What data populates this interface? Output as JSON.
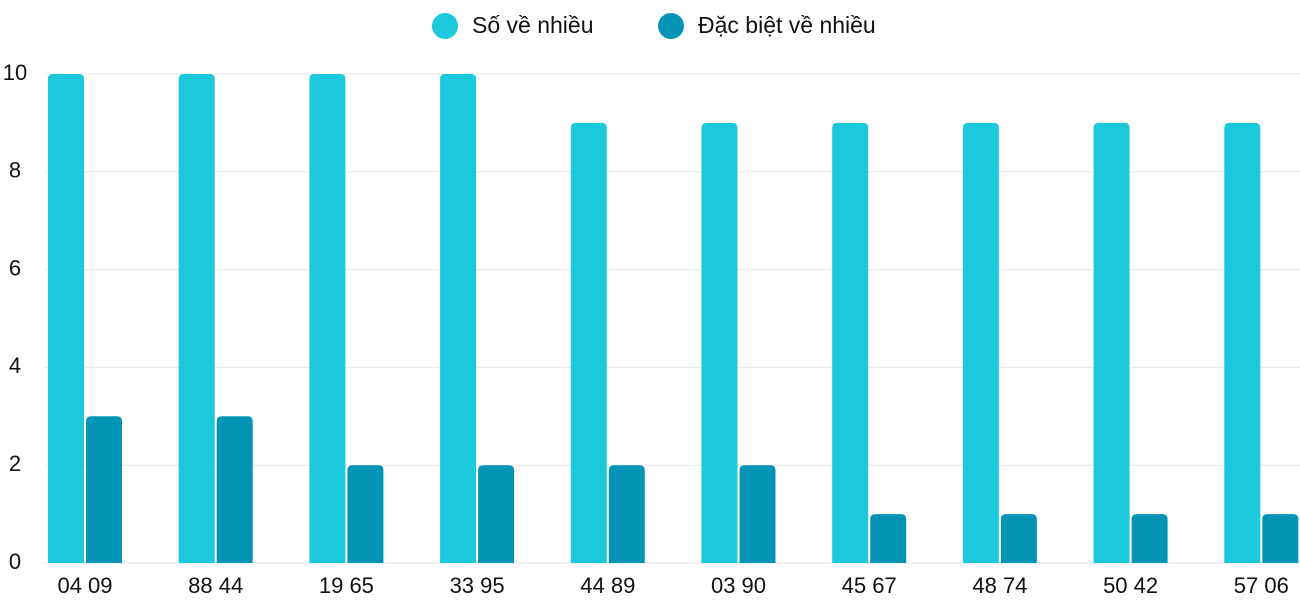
{
  "chart_data": {
    "type": "bar",
    "categories": [
      "04 09",
      "88 44",
      "19 65",
      "33 95",
      "44 89",
      "03 90",
      "45 67",
      "48 74",
      "50 42",
      "57 06"
    ],
    "series": [
      {
        "name": "Số về nhiều",
        "color": "#1bc8dc",
        "values": [
          10,
          10,
          10,
          10,
          9,
          9,
          9,
          9,
          9,
          9
        ]
      },
      {
        "name": "Đặc biệt về nhiều",
        "color": "#0593b6",
        "values": [
          3,
          3,
          2,
          2,
          2,
          2,
          1,
          1,
          1,
          1
        ]
      }
    ],
    "ylim": [
      0,
      10
    ],
    "yticks": [
      0,
      2,
      4,
      6,
      8,
      10
    ],
    "grid": true,
    "legend": "top"
  }
}
